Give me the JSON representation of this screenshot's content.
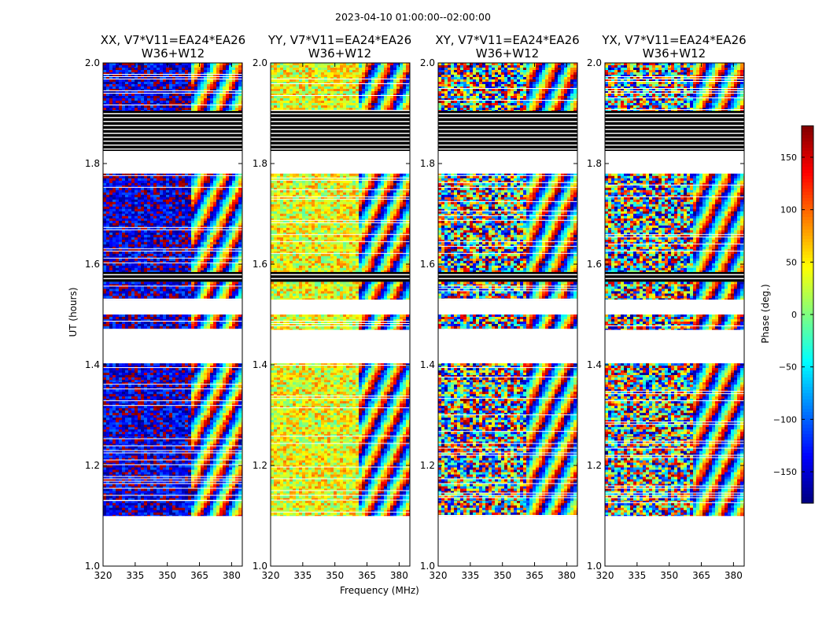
{
  "suptitle": "2023-04-10  01:00:00--02:00:00",
  "xlabel": "Frequency (MHz)",
  "ylabel": "UT (hours)",
  "colorbar": {
    "label": "Phase (deg.)",
    "range": [
      -180,
      180
    ],
    "ticks": [
      -150,
      -100,
      -50,
      0,
      50,
      100,
      150
    ],
    "tick_labels": [
      "−150",
      "−100",
      "−50",
      "0",
      "50",
      "100",
      "150"
    ],
    "colors": [
      "#00007f",
      "#0000ff",
      "#007fff",
      "#00ffff",
      "#7fff7f",
      "#ffff00",
      "#ff7f00",
      "#ff0000",
      "#7f0000"
    ]
  },
  "chart_data": [
    {
      "type": "heatmap",
      "title_line1": "XX, V7*V11=EA24*EA26",
      "title_line2": "W36+W12",
      "polarization": "XX",
      "xlim": [
        320,
        385
      ],
      "ylim": [
        1.0,
        2.0
      ],
      "xticks": [
        320,
        335,
        350,
        365,
        380
      ],
      "yticks": [
        1.0,
        1.2,
        1.4,
        1.6,
        1.8,
        2.0
      ],
      "xtick_labels": [
        "320",
        "335",
        "350",
        "365",
        "380"
      ],
      "ytick_labels": [
        "1.0",
        "1.2",
        "1.4",
        "1.6",
        "1.8",
        "2.0"
      ],
      "base_phase_deg": -150,
      "fringe_start_mhz": 362
    },
    {
      "type": "heatmap",
      "title_line1": "YY, V7*V11=EA24*EA26",
      "title_line2": "W36+W12",
      "polarization": "YY",
      "xlim": [
        320,
        385
      ],
      "ylim": [
        1.0,
        2.0
      ],
      "xticks": [
        320,
        335,
        350,
        365,
        380
      ],
      "yticks": [
        1.0,
        1.2,
        1.4,
        1.6,
        1.8,
        2.0
      ],
      "xtick_labels": [
        "320",
        "335",
        "350",
        "365",
        "380"
      ],
      "ytick_labels": [
        "1.0",
        "1.2",
        "1.4",
        "1.6",
        "1.8",
        "2.0"
      ],
      "base_phase_deg": 40,
      "fringe_start_mhz": 362
    },
    {
      "type": "heatmap",
      "title_line1": "XY, V7*V11=EA24*EA26",
      "title_line2": "W36+W12",
      "polarization": "XY",
      "xlim": [
        320,
        385
      ],
      "ylim": [
        1.0,
        2.0
      ],
      "xticks": [
        320,
        335,
        350,
        365,
        380
      ],
      "yticks": [
        1.0,
        1.2,
        1.4,
        1.6,
        1.8,
        2.0
      ],
      "xtick_labels": [
        "320",
        "335",
        "350",
        "365",
        "380"
      ],
      "ytick_labels": [
        "1.0",
        "1.2",
        "1.4",
        "1.6",
        "1.8",
        "2.0"
      ],
      "base_phase_deg": null,
      "fringe_start_mhz": 362
    },
    {
      "type": "heatmap",
      "title_line1": "YX, V7*V11=EA24*EA26",
      "title_line2": "W36+W12",
      "polarization": "YX",
      "xlim": [
        320,
        385
      ],
      "ylim": [
        1.0,
        2.0
      ],
      "xticks": [
        320,
        335,
        350,
        365,
        380
      ],
      "yticks": [
        1.0,
        1.2,
        1.4,
        1.6,
        1.8,
        2.0
      ],
      "xtick_labels": [
        "320",
        "335",
        "350",
        "365",
        "380"
      ],
      "ytick_labels": [
        "1.0",
        "1.2",
        "1.4",
        "1.6",
        "1.8",
        "2.0"
      ],
      "base_phase_deg": null,
      "fringe_start_mhz": 362
    }
  ],
  "time_segments_ut": [
    {
      "start": 1.1,
      "end": 1.13,
      "kind": "data"
    },
    {
      "start": 1.13,
      "end": 1.257,
      "kind": "data"
    },
    {
      "start": 1.257,
      "end": 1.37,
      "kind": "data"
    },
    {
      "start": 1.37,
      "end": 1.403,
      "kind": "data"
    },
    {
      "start": 1.47,
      "end": 1.5,
      "kind": "data"
    },
    {
      "start": 1.53,
      "end": 1.565,
      "kind": "data"
    },
    {
      "start": 1.565,
      "end": 1.585,
      "kind": "flagged"
    },
    {
      "start": 1.585,
      "end": 1.78,
      "kind": "data"
    },
    {
      "start": 1.825,
      "end": 1.905,
      "kind": "flagged"
    },
    {
      "start": 1.905,
      "end": 2.0,
      "kind": "data"
    }
  ]
}
